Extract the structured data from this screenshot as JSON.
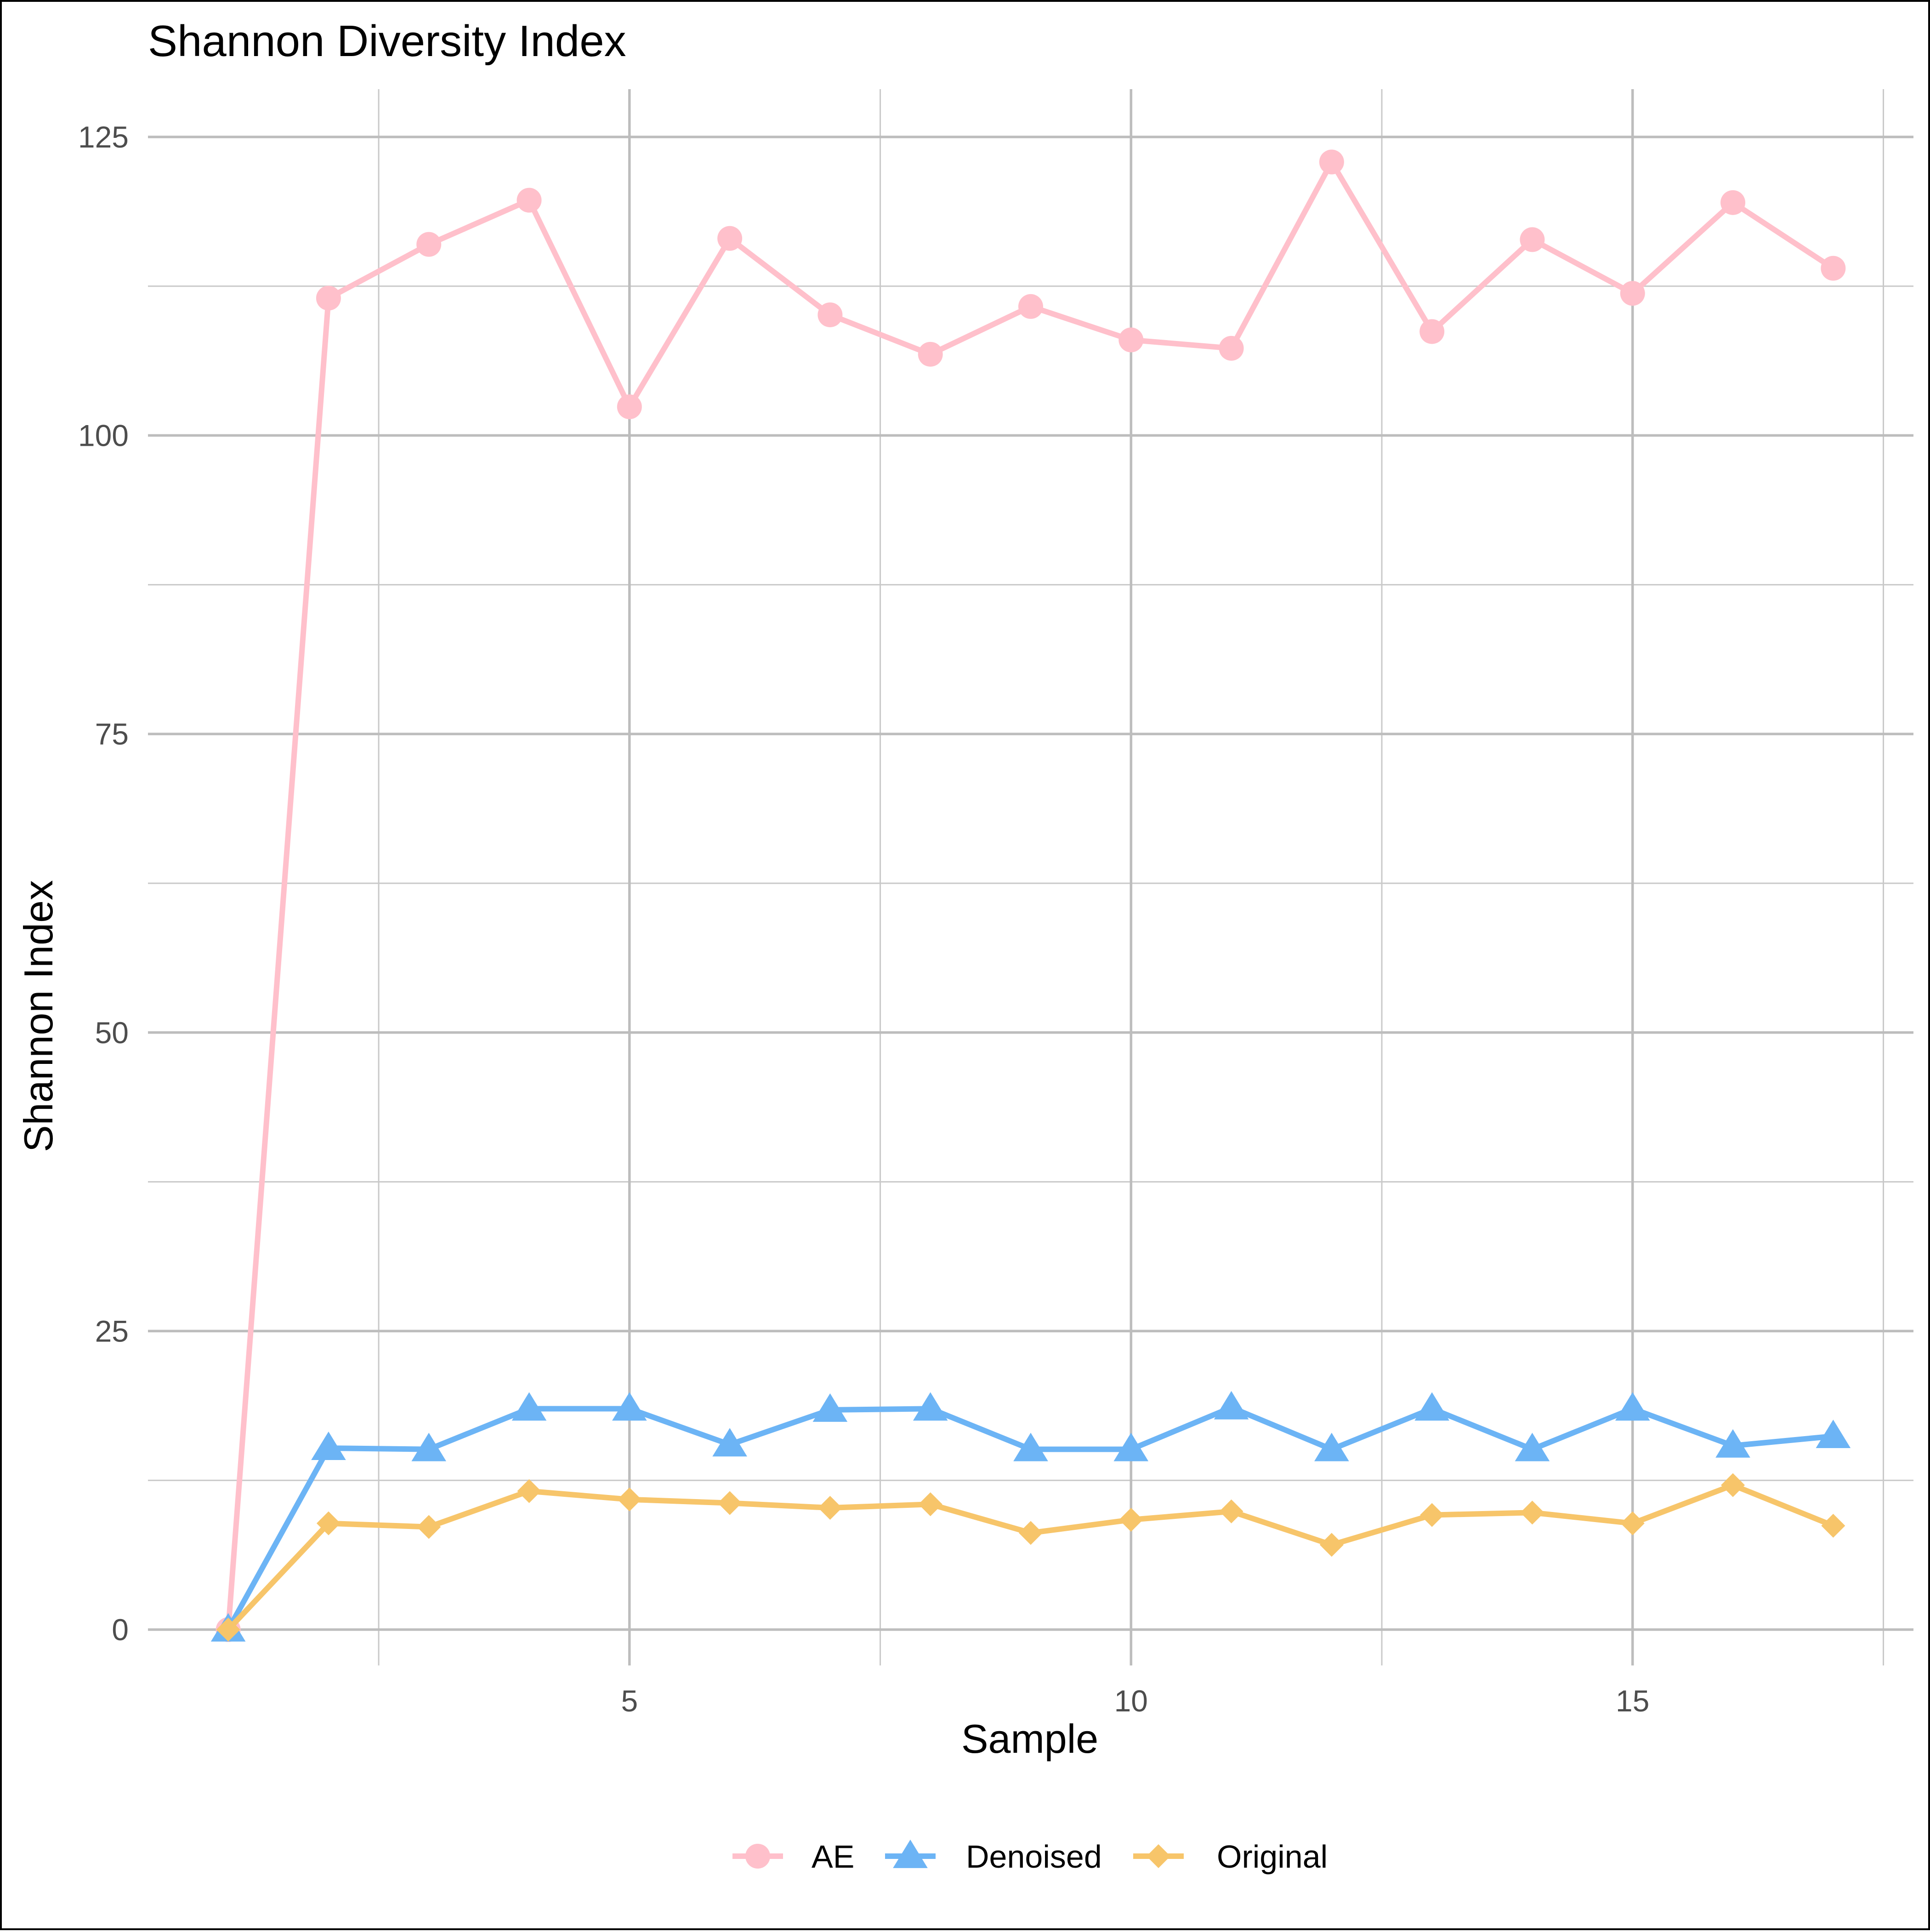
{
  "chart_data": {
    "type": "line",
    "title": "Shannon Diversity Index",
    "xlabel": "Sample",
    "ylabel": "Shannon Index",
    "xlim": [
      0.2,
      17.8
    ],
    "ylim": [
      -3,
      129
    ],
    "x_ticks": [
      5,
      10,
      15
    ],
    "x_minor_ticks": [
      2.5,
      7.5,
      12.5,
      17.5
    ],
    "y_ticks": [
      0,
      25,
      50,
      75,
      100,
      125
    ],
    "y_minor_ticks": [
      12.5,
      37.5,
      62.5,
      87.5,
      112.5
    ],
    "grid": true,
    "legend_position": "bottom",
    "x": [
      1,
      2,
      3,
      4,
      5,
      6,
      7,
      8,
      9,
      10,
      11,
      12,
      13,
      14,
      15,
      16,
      17
    ],
    "series": [
      {
        "name": "AE",
        "color": "#FFC0CB",
        "marker": "circle",
        "values": [
          0,
          111.5,
          116,
          119.7,
          102.4,
          116.5,
          110.1,
          106.8,
          110.8,
          108,
          107.3,
          122.9,
          108.7,
          116.4,
          111.9,
          119.5,
          114
        ]
      },
      {
        "name": "Denoised",
        "color": "#6CB4F5",
        "marker": "triangle",
        "values": [
          0,
          15.2,
          15.1,
          18.5,
          18.5,
          15.5,
          18.4,
          18.5,
          15.1,
          15.1,
          18.6,
          15.1,
          18.5,
          15.1,
          18.5,
          15.4,
          16.2
        ]
      },
      {
        "name": "Original",
        "color": "#F7C56A",
        "marker": "diamond",
        "values": [
          0,
          8.9,
          8.6,
          11.6,
          10.9,
          10.6,
          10.2,
          10.5,
          8.1,
          9.2,
          9.9,
          7.1,
          9.6,
          9.8,
          8.9,
          12.1,
          8.7
        ]
      }
    ]
  }
}
